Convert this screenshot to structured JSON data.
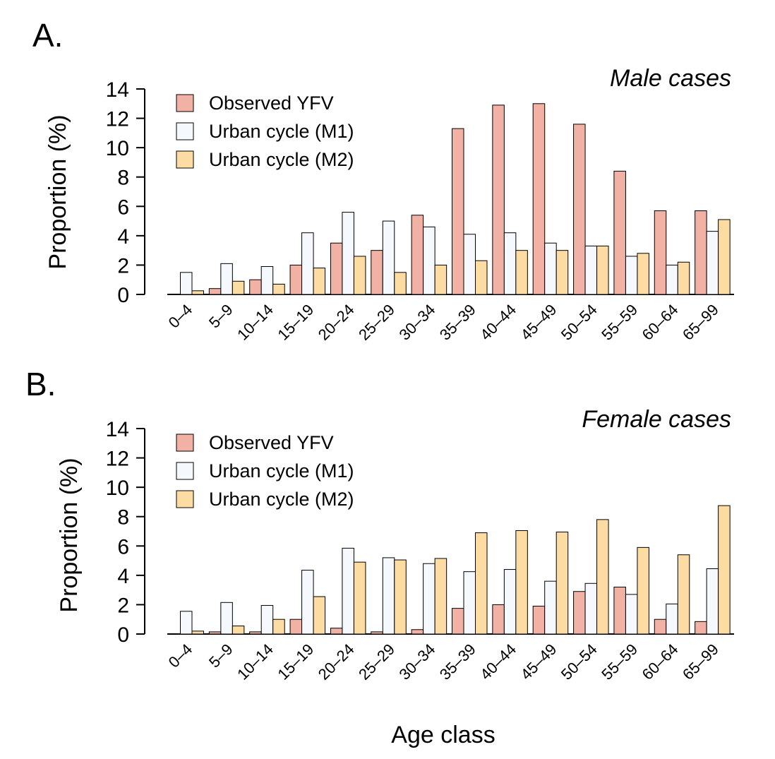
{
  "chart_data": [
    {
      "type": "bar",
      "panel_label": "A.",
      "title": "Male cases",
      "ylabel": "Proportion (%)",
      "xlabel": "",
      "ylim": [
        0,
        14
      ],
      "yticks": [
        0,
        2,
        4,
        6,
        8,
        10,
        12,
        14
      ],
      "grid": false,
      "legend_position": "top-left",
      "categories": [
        "0–4",
        "5–9",
        "10–14",
        "15–19",
        "20–24",
        "25–29",
        "30–34",
        "35–39",
        "40–44",
        "45–49",
        "50–54",
        "55–59",
        "60–64",
        "65–99"
      ],
      "series": [
        {
          "name": "Observed YFV",
          "color": "#f2b1a5",
          "values": [
            0,
            0.4,
            1.0,
            2.0,
            3.5,
            3.0,
            5.4,
            11.3,
            12.9,
            13.0,
            11.6,
            8.4,
            5.7,
            5.7
          ]
        },
        {
          "name": "Urban cycle (M1)",
          "color": "#f5f9fd",
          "values": [
            1.5,
            2.1,
            1.9,
            4.2,
            5.6,
            5.0,
            4.6,
            4.1,
            4.2,
            3.5,
            3.3,
            2.6,
            2.0,
            4.3
          ]
        },
        {
          "name": "Urban cycle (M2)",
          "color": "#fddca4",
          "values": [
            0.25,
            0.9,
            0.7,
            1.8,
            2.6,
            1.5,
            2.0,
            2.3,
            3.0,
            3.0,
            3.3,
            2.8,
            2.2,
            5.1
          ]
        }
      ]
    },
    {
      "type": "bar",
      "panel_label": "B.",
      "title": "Female cases",
      "ylabel": "Proportion (%)",
      "xlabel": "Age class",
      "ylim": [
        0,
        14
      ],
      "yticks": [
        0,
        2,
        4,
        6,
        8,
        10,
        12,
        14
      ],
      "grid": false,
      "legend_position": "top-left",
      "categories": [
        "0–4",
        "5–9",
        "10–14",
        "15–19",
        "20–24",
        "25–29",
        "30–34",
        "35–39",
        "40–44",
        "45–49",
        "50–54",
        "55–59",
        "60–64",
        "65–99"
      ],
      "series": [
        {
          "name": "Observed YFV",
          "color": "#f2b1a5",
          "values": [
            0,
            0.15,
            0.15,
            1.0,
            0.4,
            0.15,
            0.3,
            1.75,
            2.0,
            1.9,
            2.9,
            3.2,
            1.0,
            0.85
          ]
        },
        {
          "name": "Urban cycle (M1)",
          "color": "#f5f9fd",
          "values": [
            1.55,
            2.15,
            1.95,
            4.35,
            5.85,
            5.2,
            4.8,
            4.25,
            4.4,
            3.6,
            3.45,
            2.7,
            2.05,
            4.45
          ]
        },
        {
          "name": "Urban cycle (M2)",
          "color": "#fddca4",
          "values": [
            0.2,
            0.55,
            1.0,
            2.55,
            4.9,
            5.05,
            5.15,
            6.9,
            7.05,
            6.95,
            7.8,
            5.9,
            5.4,
            8.75
          ]
        }
      ]
    }
  ]
}
